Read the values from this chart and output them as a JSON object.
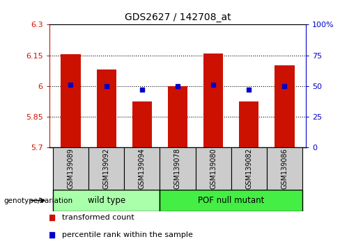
{
  "title": "GDS2627 / 142708_at",
  "samples": [
    "GSM139089",
    "GSM139092",
    "GSM139094",
    "GSM139078",
    "GSM139080",
    "GSM139082",
    "GSM139086"
  ],
  "bar_values": [
    6.155,
    6.08,
    5.925,
    6.0,
    6.16,
    5.925,
    6.1
  ],
  "percentile_values": [
    51,
    50,
    47,
    50,
    51,
    47,
    50
  ],
  "ylim_left": [
    5.7,
    6.3
  ],
  "ylim_right": [
    0,
    100
  ],
  "yticks_left": [
    5.7,
    5.85,
    6.0,
    6.15,
    6.3
  ],
  "yticks_right": [
    0,
    25,
    50,
    75,
    100
  ],
  "ytick_labels_left": [
    "5.7",
    "5.85",
    "6",
    "6.15",
    "6.3"
  ],
  "ytick_labels_right": [
    "0",
    "25",
    "50",
    "75",
    "100%"
  ],
  "hlines": [
    5.85,
    6.0,
    6.15
  ],
  "bar_color": "#cc1100",
  "blue_color": "#0000cc",
  "wild_type_indices": [
    0,
    1,
    2
  ],
  "pof_indices": [
    3,
    4,
    5,
    6
  ],
  "wild_type_label": "wild type",
  "pof_label": "POF null mutant",
  "group_label": "genotype/variation",
  "legend_bar_label": "transformed count",
  "legend_blue_label": "percentile rank within the sample",
  "wild_type_color": "#aaffaa",
  "pof_color": "#44ee44",
  "sample_box_color": "#cccccc",
  "bar_bottom": 5.7,
  "bar_width": 0.55
}
